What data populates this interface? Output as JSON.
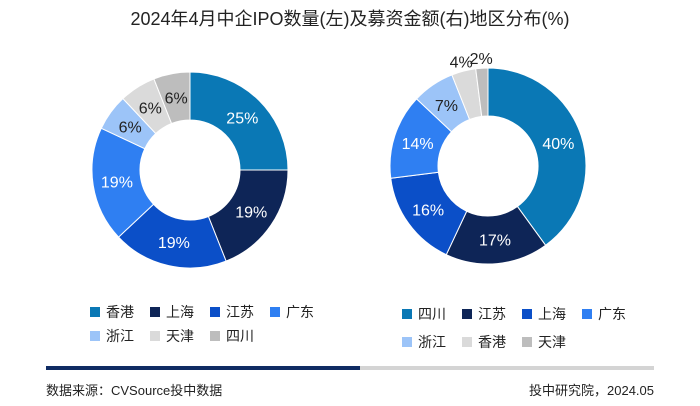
{
  "title": "2024年4月中企IPO数量(左)及募资金额(右)地区分布(%)",
  "colors": {
    "c1": "#0a78b5",
    "c2": "#0e2557",
    "c3": "#0b4fc8",
    "c4": "#2f7ff2",
    "c5": "#9cc4f8",
    "c6": "#dadada",
    "c7": "#bdbdbd"
  },
  "chart_data": [
    {
      "type": "pie",
      "subtype": "donut",
      "title": "IPO数量(左)",
      "categories": [
        "香港",
        "上海",
        "江苏",
        "广东",
        "浙江",
        "天津",
        "四川"
      ],
      "values": [
        25,
        19,
        19,
        19,
        6,
        6,
        6
      ],
      "labels": [
        "25%",
        "19%",
        "19%",
        "19%",
        "6%",
        "6%",
        "6%"
      ],
      "legend_position": "bottom"
    },
    {
      "type": "pie",
      "subtype": "donut",
      "title": "募资金额(右)",
      "categories": [
        "四川",
        "江苏",
        "上海",
        "广东",
        "浙江",
        "香港",
        "天津"
      ],
      "values": [
        40,
        17,
        16,
        14,
        7,
        4,
        2
      ],
      "labels": [
        "40%",
        "17%",
        "16%",
        "14%",
        "7%",
        "4%",
        "2%"
      ],
      "legend_position": "bottom"
    }
  ],
  "legend_left": {
    "row1": [
      "香港",
      "上海",
      "江苏",
      "广东"
    ],
    "row2": [
      "浙江",
      "天津",
      "四川"
    ]
  },
  "legend_right": {
    "row1": [
      "四川",
      "江苏",
      "上海",
      "广东"
    ],
    "row2": [
      "浙江",
      "香港",
      "天津"
    ]
  },
  "footer": {
    "source": "数据来源：CVSource投中数据",
    "credit": "投中研究院，2024.05"
  }
}
